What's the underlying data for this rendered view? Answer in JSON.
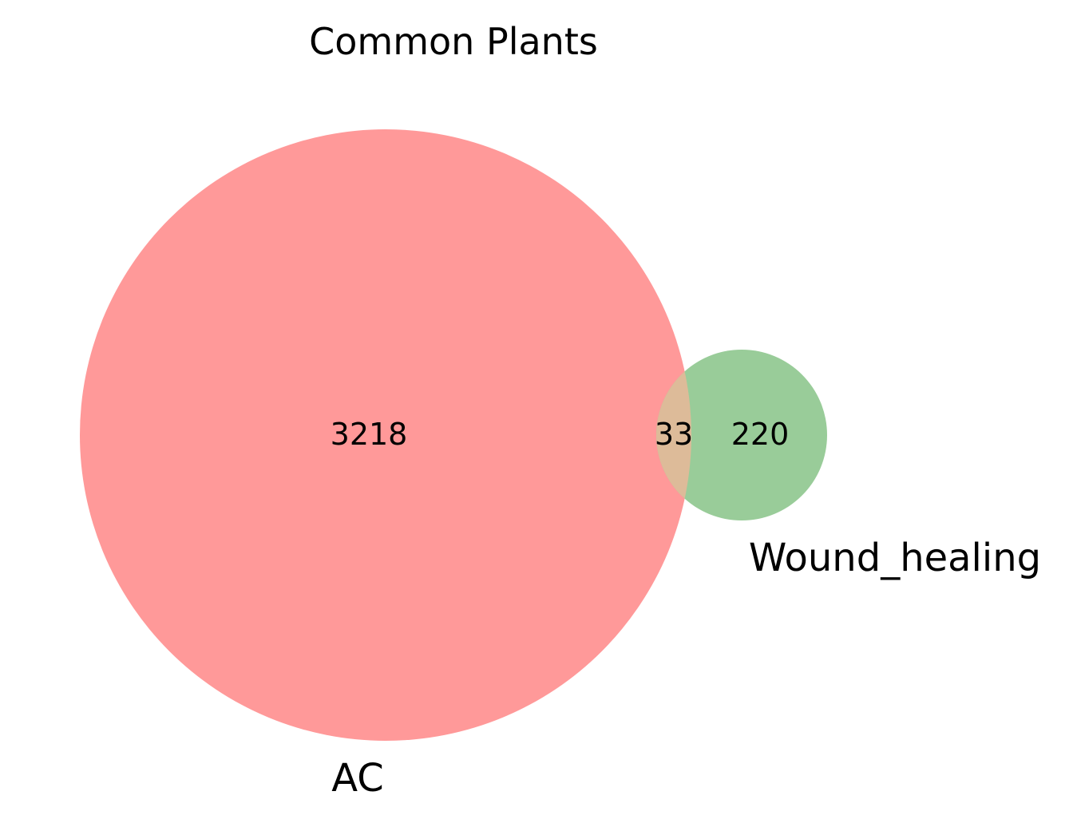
{
  "diagram": {
    "title": "Common Plants",
    "sets": [
      {
        "name": "AC",
        "only_count": "3218",
        "color": "#ff9999"
      },
      {
        "name": "Wound_healing",
        "only_count": "220",
        "color": "#99cc99"
      }
    ],
    "intersection": {
      "count": "33",
      "color": "#ddbb99"
    }
  }
}
